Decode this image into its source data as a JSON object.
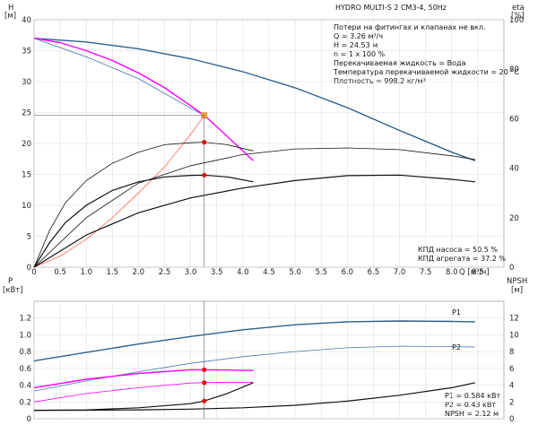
{
  "chart_data": [
    {
      "type": "line",
      "title": "HYDRO MULTI-S 2 CM3-4, 50Hz",
      "info_lines": [
        "Потери на фитингах и клапанах не вкл.",
        "Q = 3.26 м³/ч",
        "H = 24.53 м",
        "n = 1 x 100 %",
        "Перекачиваемая жидкость = Вода",
        "Температура перекачиваемой жидкости = 20 °C",
        "Плотность = 998.2 кг/м³"
      ],
      "y_left_label": "H",
      "y_left_unit": "[м]",
      "y_right_label": "eta",
      "y_right_unit": "[%]",
      "x_label": "Q [м³/ч]",
      "xlim": [
        0,
        9.0
      ],
      "ylim_left": [
        0,
        40
      ],
      "ylim_right": [
        0,
        100
      ],
      "x_ticks": [
        "0",
        "0.5",
        "1.0",
        "1.5",
        "2.0",
        "2.5",
        "3.0",
        "3.5",
        "4.0",
        "4.5",
        "5.0",
        "5.5",
        "6.0",
        "6.5",
        "7.0",
        "7.5",
        "8.0",
        "8.5"
      ],
      "y_left_ticks": [
        "0",
        "5",
        "10",
        "15",
        "20",
        "25",
        "30",
        "35",
        "40"
      ],
      "y_right_ticks": [
        "0",
        "20",
        "40",
        "60",
        "80",
        "100"
      ],
      "series": [
        {
          "axis": "left",
          "color": "#2f5f8f",
          "width": 1.4,
          "x": [
            0,
            1,
            2,
            3,
            4,
            5,
            6,
            7,
            8,
            8.45
          ],
          "y": [
            37.0,
            36.4,
            35.3,
            33.7,
            31.6,
            29.0,
            25.8,
            22.1,
            18.6,
            17.2
          ]
        },
        {
          "axis": "left",
          "color": "#3f6f9f",
          "width": 0.8,
          "x": [
            0,
            1,
            2,
            3,
            3.26
          ],
          "y": [
            37.0,
            34.0,
            30.5,
            25.7,
            24.53
          ]
        },
        {
          "axis": "left",
          "color": "#ff00ff",
          "width": 1.4,
          "x": [
            0,
            0.5,
            1,
            1.5,
            2,
            2.5,
            3,
            3.26,
            3.5,
            4.0,
            4.2
          ],
          "y": [
            37.0,
            36.3,
            35.0,
            33.4,
            31.4,
            29.0,
            26.1,
            24.53,
            22.7,
            18.8,
            17.2
          ]
        },
        {
          "axis": "left",
          "color": "#ff6655",
          "width": 0.8,
          "x": [
            0,
            0.5,
            1.0,
            1.5,
            2.0,
            2.5,
            3.0,
            3.26
          ],
          "y": [
            0,
            1.8,
            4.5,
            8.0,
            12.0,
            16.2,
            21.5,
            24.53
          ]
        },
        {
          "axis": "right",
          "color": "#111111",
          "width": 0.8,
          "x": [
            0,
            0.3,
            0.6,
            1.0,
            1.5,
            2.0,
            2.5,
            3.0,
            3.26,
            3.7,
            4.2
          ],
          "y": [
            0,
            15,
            26,
            35,
            42,
            46.5,
            49.5,
            50.3,
            50.5,
            49.5,
            47.0
          ]
        },
        {
          "axis": "right",
          "color": "#111111",
          "width": 0.8,
          "x": [
            0,
            1,
            2,
            3,
            4,
            5,
            6,
            7,
            8,
            8.45
          ],
          "y": [
            0,
            20,
            34,
            41,
            45.5,
            47.8,
            48.2,
            47.5,
            45.0,
            43.5
          ]
        },
        {
          "axis": "right",
          "color": "#111111",
          "width": 1.2,
          "x": [
            0,
            0.3,
            0.6,
            1.0,
            1.5,
            2.0,
            2.5,
            3.0,
            3.26,
            3.7,
            4.2
          ],
          "y": [
            0,
            10,
            18,
            25,
            31,
            34.5,
            36.5,
            37.1,
            37.2,
            36.5,
            34.5
          ]
        },
        {
          "axis": "right",
          "color": "#111111",
          "width": 1.2,
          "x": [
            0,
            1,
            2,
            3,
            4,
            5,
            6,
            7,
            8,
            8.45
          ],
          "y": [
            0,
            13,
            22,
            28,
            32,
            35,
            37,
            37.2,
            35.5,
            34.5
          ]
        }
      ],
      "markers": [
        {
          "axis": "left",
          "x": 3.26,
          "y": 24.53,
          "color": "#f2a23a",
          "shape": "square"
        },
        {
          "axis": "right",
          "x": 3.26,
          "y": 50.5,
          "color": "#ff0000",
          "shape": "circle"
        },
        {
          "axis": "right",
          "x": 3.26,
          "y": 37.2,
          "color": "#ff0000",
          "shape": "circle"
        }
      ],
      "annotations": [
        "КПД насоса = 50.5 %",
        "КПД агрегата = 37.2 %"
      ]
    },
    {
      "type": "line",
      "y_left_label": "P",
      "y_left_unit": "[кВт]",
      "y_right_label": "NPSH",
      "y_right_unit": "[м]",
      "xlim": [
        0,
        9.0
      ],
      "ylim_left": [
        0,
        1.4
      ],
      "ylim_right": [
        0,
        14
      ],
      "y_left_ticks": [
        "0",
        "0.2",
        "0.4",
        "0.6",
        "0.8",
        "1.0",
        "1.2"
      ],
      "y_right_ticks": [
        "0",
        "2",
        "4",
        "6",
        "8",
        "10",
        "12"
      ],
      "series": [
        {
          "axis": "left",
          "name": "P1",
          "color": "#2f5f8f",
          "width": 1.4,
          "x": [
            0,
            1,
            2,
            3,
            4,
            5,
            6,
            7,
            8,
            8.45
          ],
          "y": [
            0.69,
            0.79,
            0.89,
            0.98,
            1.06,
            1.12,
            1.155,
            1.165,
            1.16,
            1.155
          ]
        },
        {
          "axis": "left",
          "name": "P2",
          "color": "#4a7aaa",
          "width": 0.8,
          "x": [
            0,
            1,
            2,
            3,
            4,
            5,
            6,
            7,
            8,
            8.45
          ],
          "y": [
            0.33,
            0.45,
            0.56,
            0.66,
            0.74,
            0.8,
            0.845,
            0.865,
            0.86,
            0.855
          ]
        },
        {
          "axis": "left",
          "color": "#ff00ff",
          "width": 1.4,
          "x": [
            0,
            1,
            2,
            3,
            3.26,
            3.7,
            4.2
          ],
          "y": [
            0.37,
            0.47,
            0.54,
            0.583,
            0.584,
            0.58,
            0.575
          ]
        },
        {
          "axis": "left",
          "color": "#ff00ff",
          "width": 0.8,
          "x": [
            0,
            1,
            2,
            3,
            3.26,
            3.7,
            4.2
          ],
          "y": [
            0.2,
            0.3,
            0.37,
            0.425,
            0.43,
            0.435,
            0.435
          ]
        },
        {
          "axis": "right",
          "color": "#111111",
          "width": 1.2,
          "x": [
            0,
            1,
            2,
            3,
            3.26,
            3.7,
            4.2
          ],
          "y": [
            1.0,
            1.05,
            1.3,
            1.8,
            2.12,
            3.0,
            4.3
          ]
        },
        {
          "axis": "right",
          "color": "#111111",
          "width": 1.2,
          "x": [
            0,
            1,
            2,
            3,
            4,
            5,
            6,
            7,
            8,
            8.45
          ],
          "y": [
            1.0,
            1.02,
            1.06,
            1.14,
            1.3,
            1.6,
            2.1,
            2.8,
            3.7,
            4.3
          ]
        }
      ],
      "markers": [
        {
          "axis": "left",
          "x": 3.26,
          "y": 0.584,
          "color": "#ff0000",
          "shape": "circle"
        },
        {
          "axis": "left",
          "x": 3.26,
          "y": 0.43,
          "color": "#ff0000",
          "shape": "circle"
        },
        {
          "axis": "right",
          "x": 3.26,
          "y": 2.12,
          "color": "#ff0000",
          "shape": "circle"
        }
      ],
      "annotations": [
        "P1 = 0.584 кВт",
        "P2 = 0.43 кВт",
        "NPSH = 2.12 м"
      ]
    }
  ]
}
